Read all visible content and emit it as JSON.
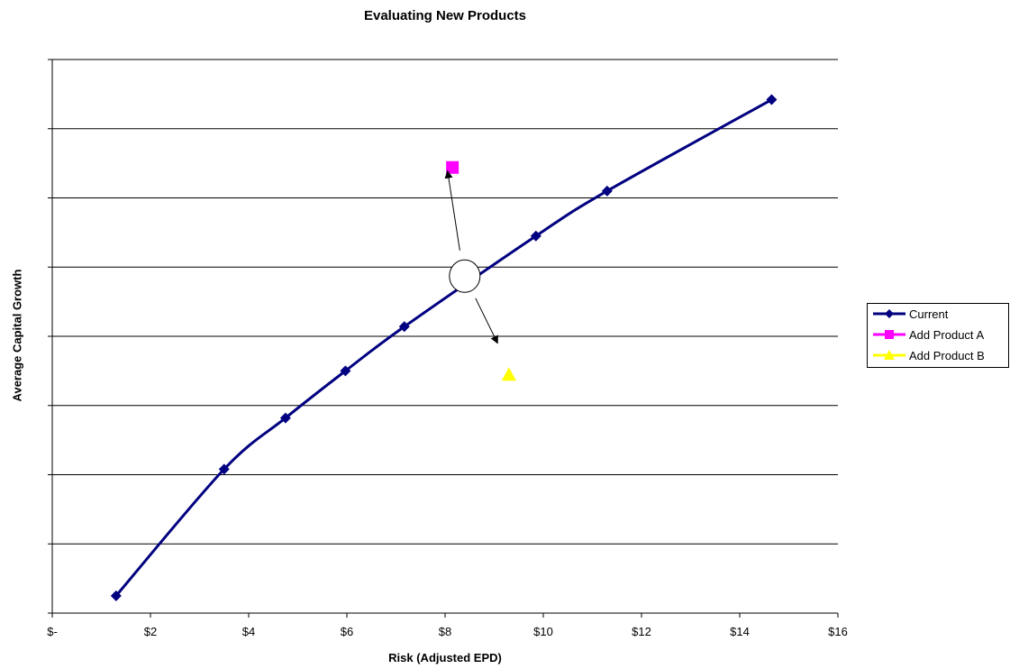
{
  "chart_data": {
    "type": "line",
    "title": "Evaluating New Products",
    "xlabel": "Risk (Adjusted EPD)",
    "ylabel": "Average Capital Growth",
    "xlim": [
      0,
      16
    ],
    "ylim": [
      0,
      8
    ],
    "x_ticks": [
      0,
      2,
      4,
      6,
      8,
      10,
      12,
      14,
      16
    ],
    "x_tick_labels": [
      "$-",
      "$2",
      "$4",
      "$6",
      "$8",
      "$10",
      "$12",
      "$14",
      "$16"
    ],
    "y_ticks": [
      0,
      1,
      2,
      3,
      4,
      5,
      6,
      7,
      8
    ],
    "y_tick_labels_visible": false,
    "grid": "horizontal",
    "legend_position": "right",
    "series": [
      {
        "name": "Current",
        "marker": "diamond",
        "color": "#000080",
        "smooth": true,
        "points": [
          [
            1.3,
            0.25
          ],
          [
            3.5,
            2.08
          ],
          [
            4.75,
            2.82
          ],
          [
            5.97,
            3.5
          ],
          [
            7.17,
            4.14
          ],
          [
            9.85,
            5.45
          ],
          [
            11.3,
            6.1
          ],
          [
            14.65,
            7.42
          ]
        ]
      },
      {
        "name": "Add Product A",
        "marker": "square",
        "color": "#FF00FF",
        "points": [
          [
            8.15,
            6.44
          ]
        ]
      },
      {
        "name": "Add Product B",
        "marker": "triangle",
        "color": "#FFFF00",
        "points": [
          [
            9.3,
            3.45
          ]
        ]
      }
    ],
    "annotations": [
      {
        "type": "circle",
        "at": [
          8.4,
          4.87
        ]
      },
      {
        "type": "arrow",
        "from": [
          8.3,
          5.24
        ],
        "to": [
          8.05,
          6.39
        ]
      },
      {
        "type": "arrow",
        "from": [
          8.62,
          4.55
        ],
        "to": [
          9.07,
          3.9
        ]
      }
    ]
  }
}
